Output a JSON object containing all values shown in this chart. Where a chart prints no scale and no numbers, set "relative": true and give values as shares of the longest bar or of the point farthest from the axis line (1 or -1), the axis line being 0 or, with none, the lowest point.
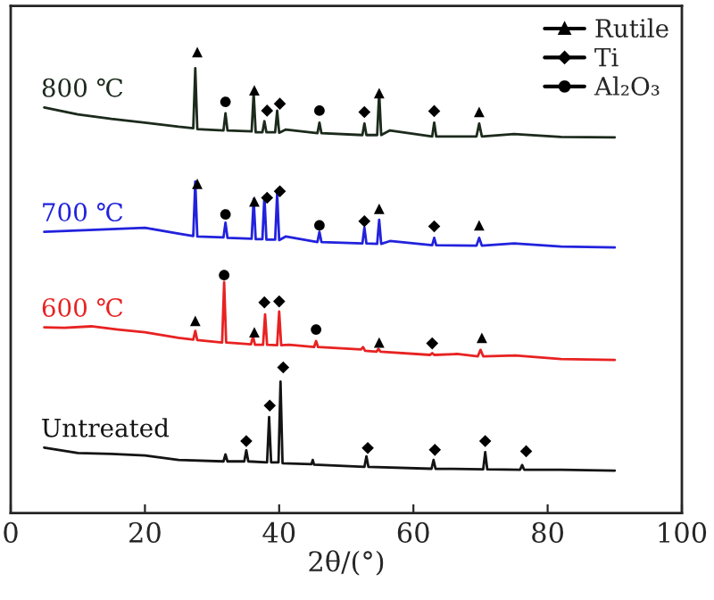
{
  "chart_data": {
    "type": "line",
    "relative": true,
    "xlabel": "2θ/(°)",
    "xlim": [
      0,
      100
    ],
    "xticks": [
      0,
      20,
      40,
      60,
      80,
      100
    ],
    "legend": "top right",
    "grid": false,
    "tick_labels": "x",
    "series": [
      {
        "name": "800 ℃",
        "color": "#1c2a1c",
        "x": [
          5,
          10,
          15,
          20,
          25,
          27.2,
          27.5,
          27.8,
          31.7,
          32,
          32.3,
          35.9,
          36.2,
          36.5,
          37.5,
          37.8,
          38.1,
          39.4,
          39.7,
          40,
          41,
          45.7,
          46,
          46.3,
          52.4,
          52.7,
          53,
          54.6,
          54.9,
          55.2,
          56.5,
          62.8,
          63.1,
          63.4,
          69.4,
          69.8,
          70.2,
          75,
          82,
          90
        ],
        "values": [
          0.88,
          0.865,
          0.855,
          0.847,
          0.838,
          0.835,
          0.965,
          0.833,
          0.83,
          0.867,
          0.83,
          0.828,
          0.912,
          0.826,
          0.826,
          0.85,
          0.826,
          0.826,
          0.873,
          0.825,
          0.832,
          0.824,
          0.847,
          0.824,
          0.82,
          0.845,
          0.82,
          0.82,
          0.912,
          0.82,
          0.83,
          0.817,
          0.847,
          0.817,
          0.817,
          0.845,
          0.817,
          0.822,
          0.816,
          0.815
        ]
      },
      {
        "name": "700 ℃",
        "color": "#2222dd",
        "x": [
          5,
          10,
          15,
          20,
          25,
          27.2,
          27.5,
          27.8,
          31.7,
          32,
          32.3,
          35.9,
          36.2,
          36.5,
          37.5,
          37.8,
          38.1,
          39.4,
          39.7,
          40,
          41,
          45.7,
          46,
          46.3,
          52.4,
          52.7,
          53,
          54.6,
          54.9,
          55.2,
          56.5,
          62.8,
          63.1,
          63.4,
          69.4,
          69.8,
          70.2,
          75,
          82,
          90
        ],
        "values": [
          0.61,
          0.613,
          0.616,
          0.619,
          0.606,
          0.601,
          0.719,
          0.6,
          0.598,
          0.63,
          0.597,
          0.595,
          0.681,
          0.594,
          0.594,
          0.687,
          0.593,
          0.593,
          0.694,
          0.592,
          0.6,
          0.588,
          0.61,
          0.588,
          0.585,
          0.619,
          0.585,
          0.584,
          0.636,
          0.584,
          0.59,
          0.581,
          0.597,
          0.581,
          0.58,
          0.597,
          0.58,
          0.585,
          0.578,
          0.576
        ]
      },
      {
        "name": "600 ℃",
        "color": "#e82222",
        "x": [
          5,
          8,
          12,
          16,
          20,
          25,
          27.2,
          27.5,
          27.8,
          31.5,
          31.8,
          32.1,
          35.8,
          36.1,
          36.4,
          37.6,
          37.9,
          38.2,
          39.7,
          40,
          40.3,
          41.5,
          45.2,
          45.5,
          45.8,
          52.2,
          52.5,
          52.8,
          54.5,
          54.8,
          55.1,
          62.5,
          62.8,
          63.1,
          66.5,
          69.6,
          70,
          70.4,
          75.2,
          82,
          90
        ],
        "values": [
          0.403,
          0.402,
          0.405,
          0.398,
          0.392,
          0.38,
          0.376,
          0.395,
          0.375,
          0.37,
          0.501,
          0.37,
          0.366,
          0.383,
          0.365,
          0.365,
          0.431,
          0.365,
          0.364,
          0.437,
          0.364,
          0.365,
          0.36,
          0.373,
          0.36,
          0.355,
          0.36,
          0.352,
          0.35,
          0.356,
          0.35,
          0.343,
          0.347,
          0.343,
          0.345,
          0.34,
          0.354,
          0.34,
          0.342,
          0.334,
          0.332
        ]
      },
      {
        "name": "Untreated",
        "color": "#141414",
        "x": [
          5,
          10,
          15,
          20,
          25,
          31.7,
          32,
          32.3,
          34.8,
          35.1,
          35.4,
          38.2,
          38.5,
          38.8,
          39.9,
          40.2,
          40.5,
          44.8,
          45,
          45.2,
          52.7,
          53,
          53.3,
          62.7,
          63,
          63.3,
          70.4,
          70.7,
          71,
          75.9,
          76.2,
          76.5,
          82,
          90
        ],
        "values": [
          0.142,
          0.13,
          0.128,
          0.125,
          0.115,
          0.112,
          0.127,
          0.112,
          0.112,
          0.136,
          0.112,
          0.11,
          0.208,
          0.11,
          0.11,
          0.285,
          0.108,
          0.106,
          0.115,
          0.105,
          0.1,
          0.123,
          0.1,
          0.096,
          0.115,
          0.096,
          0.095,
          0.132,
          0.095,
          0.094,
          0.104,
          0.094,
          0.094,
          0.092
        ]
      },
      {
        "name": "Rutile",
        "type": "scatter",
        "marker": "triangle",
        "color": "#000000",
        "x": [
          27.8,
          36.3,
          54.9,
          69.8,
          27.8,
          36.3,
          54.9,
          69.8,
          27.5,
          36.3,
          54.9,
          70.2
        ],
        "values": [
          1.0,
          0.917,
          0.911,
          0.87,
          0.714,
          0.676,
          0.66,
          0.624,
          0.417,
          0.392,
          0.37,
          0.38
        ]
      },
      {
        "name": "Ti",
        "type": "scatter",
        "marker": "diamond",
        "color": "#000000",
        "x": [
          38.2,
          40.1,
          52.7,
          63.1,
          38.2,
          40.1,
          52.7,
          63.1,
          37.8,
          40,
          62.8,
          35.1,
          38.6,
          40.6,
          53.2,
          63.2,
          70.7,
          76.8
        ],
        "values": [
          0.873,
          0.888,
          0.87,
          0.872,
          0.684,
          0.698,
          0.633,
          0.622,
          0.457,
          0.459,
          0.368,
          0.156,
          0.233,
          0.316,
          0.141,
          0.137,
          0.156,
          0.134
        ]
      },
      {
        "name": "Al₂O₃",
        "type": "scatter",
        "marker": "circle",
        "color": "#000000",
        "x": [
          32,
          46,
          32,
          46,
          31.8,
          45.5
        ],
        "values": [
          0.892,
          0.873,
          0.648,
          0.624,
          0.516,
          0.398
        ]
      }
    ]
  }
}
